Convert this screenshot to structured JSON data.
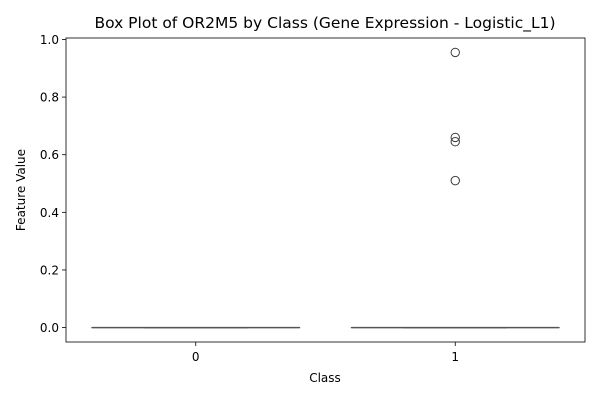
{
  "chart_data": {
    "type": "box",
    "title": "Box Plot of OR2M5 by Class (Gene Expression - Logistic_L1)",
    "xlabel": "Class",
    "ylabel": "Feature Value",
    "categories": [
      "0",
      "1"
    ],
    "ylim": [
      -0.05,
      1.005
    ],
    "yticks": [
      0.0,
      0.2,
      0.4,
      0.6,
      0.8,
      1.0
    ],
    "ytick_labels": [
      "0.0",
      "0.2",
      "0.4",
      "0.6",
      "0.8",
      "1.0"
    ],
    "grid": false,
    "box_color": "#555555",
    "boxes": [
      {
        "category": "0",
        "min": 0,
        "q1": 0,
        "median": 0,
        "q3": 0,
        "max": 0,
        "outliers": []
      },
      {
        "category": "1",
        "min": 0,
        "q1": 0,
        "median": 0,
        "q3": 0,
        "max": 0,
        "outliers": [
          0.51,
          0.645,
          0.66,
          0.955
        ]
      }
    ]
  }
}
